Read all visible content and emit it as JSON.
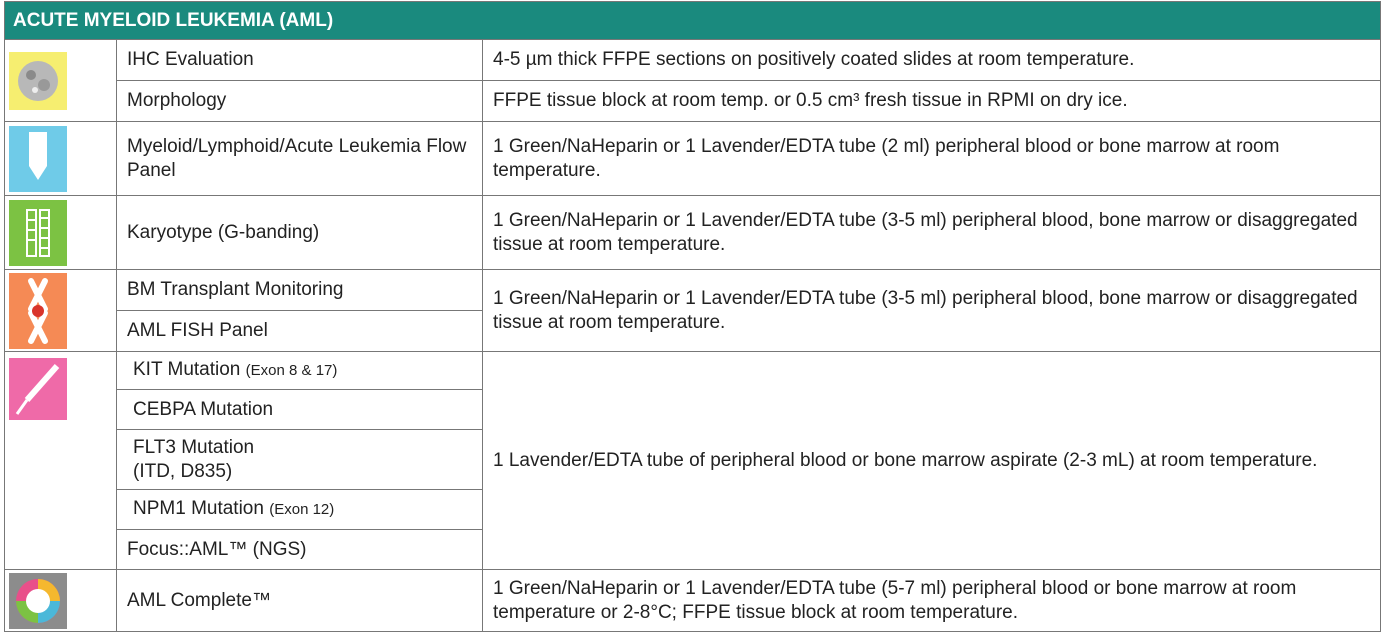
{
  "table": {
    "title": "ACUTE MYELOID LEUKEMIA (AML)",
    "groups": [
      {
        "tests": [
          {
            "name": "IHC Evaluation",
            "specimen": "4-5 µm thick FFPE sections on positively coated slides at room temperature."
          },
          {
            "name": "Morphology",
            "specimen": "FFPE tissue block at room temp. or 0.5 cm³ fresh tissue in RPMI on dry ice."
          }
        ]
      },
      {
        "tests": [
          {
            "name": "Myeloid/Lymphoid/Acute Leukemia Flow Panel"
          }
        ],
        "specimen": "1 Green/NaHeparin or 1 Lavender/EDTA tube (2 ml) peripheral blood or bone marrow at room temperature."
      },
      {
        "tests": [
          {
            "name": "Karyotype (G-banding)"
          }
        ],
        "specimen": "1 Green/NaHeparin or 1 Lavender/EDTA tube (3-5 ml) peripheral blood, bone marrow or disaggregated tissue at room temperature."
      },
      {
        "tests": [
          {
            "name": "BM Transplant Monitoring"
          },
          {
            "name": "AML FISH Panel"
          }
        ],
        "specimen": "1 Green/NaHeparin or 1 Lavender/EDTA tube (3-5 ml) peripheral blood, bone marrow or disaggregated tissue at room temperature."
      },
      {
        "tests": [
          {
            "name": "KIT Mutation",
            "note": "(Exon 8 & 17)"
          },
          {
            "name": "CEBPA Mutation"
          },
          {
            "name": "FLT3 Mutation",
            "note": "(ITD, D835)"
          },
          {
            "name": "NPM1 Mutation",
            "note": "(Exon 12)"
          },
          {
            "name": "Focus::AML™ (NGS)"
          }
        ],
        "specimen": "1 Lavender/EDTA tube of peripheral blood or bone marrow aspirate (2-3 mL) at room temperature."
      },
      {
        "tests": [
          {
            "name": "AML Complete™"
          }
        ],
        "specimen": "1 Green/NaHeparin or 1 Lavender/EDTA tube (5-7 ml) peripheral blood or bone marrow at room temperature or 2-8°C; FFPE tissue block at room temperature."
      }
    ]
  }
}
